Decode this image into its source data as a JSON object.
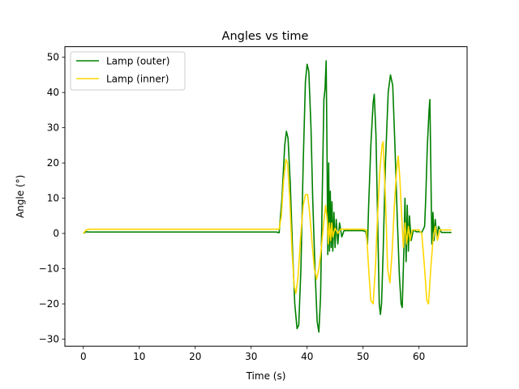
{
  "chart_data": {
    "type": "line",
    "title": "Angles vs time",
    "xlabel": "Time (s)",
    "ylabel": "Angle ($^\\circ$)",
    "ylabel_display": "Angle (°)",
    "xlim": [
      -3.3,
      68.6
    ],
    "ylim": [
      -32,
      53
    ],
    "xticks": [
      0,
      10,
      20,
      30,
      40,
      50,
      60
    ],
    "yticks": [
      -30,
      -20,
      -10,
      0,
      10,
      20,
      30,
      40,
      50
    ],
    "grid": false,
    "legend": "top-left",
    "series": [
      {
        "name": "Lamp (outer)",
        "color": "#008000",
        "points": [
          [
            0,
            0
          ],
          [
            0.5,
            0.5
          ],
          [
            1,
            0.4
          ],
          [
            5,
            0.4
          ],
          [
            10,
            0.4
          ],
          [
            15,
            0.4
          ],
          [
            20,
            0.4
          ],
          [
            25,
            0.4
          ],
          [
            30,
            0.4
          ],
          [
            34.5,
            0.4
          ],
          [
            35,
            0.2
          ],
          [
            35.5,
            10
          ],
          [
            36,
            25
          ],
          [
            36.3,
            29
          ],
          [
            36.6,
            27
          ],
          [
            37,
            14
          ],
          [
            37.4,
            -5
          ],
          [
            37.8,
            -20
          ],
          [
            38.2,
            -27
          ],
          [
            38.5,
            -26
          ],
          [
            38.9,
            -10
          ],
          [
            39.3,
            20
          ],
          [
            39.7,
            43
          ],
          [
            40,
            48
          ],
          [
            40.3,
            46
          ],
          [
            40.7,
            30
          ],
          [
            41,
            10
          ],
          [
            41.4,
            -10
          ],
          [
            41.8,
            -25
          ],
          [
            42.1,
            -28
          ],
          [
            42.4,
            -18
          ],
          [
            42.7,
            10
          ],
          [
            43,
            38
          ],
          [
            43.2,
            41
          ],
          [
            43.4,
            49
          ],
          [
            43.55,
            25
          ],
          [
            43.7,
            -6
          ],
          [
            43.85,
            20
          ],
          [
            44,
            -5
          ],
          [
            44.15,
            12
          ],
          [
            44.3,
            -4
          ],
          [
            44.45,
            9
          ],
          [
            44.6,
            -5
          ],
          [
            44.8,
            6
          ],
          [
            45,
            -4
          ],
          [
            45.2,
            4
          ],
          [
            45.5,
            -3
          ],
          [
            45.8,
            3
          ],
          [
            46.2,
            -1
          ],
          [
            46.6,
            0.8
          ],
          [
            47,
            0.8
          ],
          [
            48,
            0.8
          ],
          [
            49,
            0.8
          ],
          [
            50,
            0.8
          ],
          [
            50.5,
            0.5
          ],
          [
            50.8,
            -3
          ],
          [
            51,
            8
          ],
          [
            51.4,
            25
          ],
          [
            51.8,
            37
          ],
          [
            52,
            39.5
          ],
          [
            52.3,
            28
          ],
          [
            52.6,
            5
          ],
          [
            52.9,
            -20
          ],
          [
            53.1,
            -23
          ],
          [
            53.3,
            -20
          ],
          [
            53.6,
            -5
          ],
          [
            54,
            20
          ],
          [
            54.5,
            40
          ],
          [
            54.9,
            45
          ],
          [
            55.3,
            42
          ],
          [
            55.7,
            25
          ],
          [
            56.1,
            5
          ],
          [
            56.5,
            -12
          ],
          [
            56.8,
            -20
          ],
          [
            57,
            -21
          ],
          [
            57.3,
            -5
          ],
          [
            57.5,
            10
          ],
          [
            57.7,
            -8
          ],
          [
            57.9,
            8
          ],
          [
            58.1,
            -5
          ],
          [
            58.3,
            5
          ],
          [
            58.6,
            -2
          ],
          [
            59,
            1
          ],
          [
            59.5,
            0.5
          ],
          [
            60,
            0.5
          ],
          [
            60.5,
            0.3
          ],
          [
            61,
            2
          ],
          [
            61.2,
            10
          ],
          [
            61.5,
            25
          ],
          [
            61.8,
            35
          ],
          [
            61.95,
            38
          ],
          [
            62.1,
            20
          ],
          [
            62.3,
            -3
          ],
          [
            62.5,
            6
          ],
          [
            62.7,
            -2
          ],
          [
            62.9,
            4
          ],
          [
            63.2,
            -1
          ],
          [
            63.5,
            2
          ],
          [
            64,
            0.3
          ],
          [
            65,
            0.3
          ],
          [
            65.8,
            0.3
          ]
        ]
      },
      {
        "name": "Lamp (inner)",
        "color": "#FFD700",
        "points": [
          [
            0,
            0
          ],
          [
            0.5,
            1
          ],
          [
            1,
            1.2
          ],
          [
            5,
            1.2
          ],
          [
            10,
            1.2
          ],
          [
            15,
            1.2
          ],
          [
            20,
            1.2
          ],
          [
            25,
            1.2
          ],
          [
            30,
            1.2
          ],
          [
            34,
            1.2
          ],
          [
            35,
            1.2
          ],
          [
            35.4,
            5
          ],
          [
            35.8,
            15
          ],
          [
            36.2,
            21
          ],
          [
            36.5,
            20
          ],
          [
            36.9,
            10
          ],
          [
            37.3,
            -5
          ],
          [
            37.7,
            -15
          ],
          [
            38,
            -17
          ],
          [
            38.4,
            -12
          ],
          [
            38.8,
            -2
          ],
          [
            39.3,
            8
          ],
          [
            39.7,
            11
          ],
          [
            40.1,
            11
          ],
          [
            40.5,
            5
          ],
          [
            40.9,
            -3
          ],
          [
            41.3,
            -10
          ],
          [
            41.7,
            -13
          ],
          [
            42.1,
            -10
          ],
          [
            42.5,
            -5
          ],
          [
            42.9,
            2
          ],
          [
            43.3,
            8
          ],
          [
            43.6,
            4
          ],
          [
            43.8,
            -3
          ],
          [
            44,
            3
          ],
          [
            44.2,
            -2
          ],
          [
            44.4,
            3
          ],
          [
            44.6,
            -1
          ],
          [
            45,
            1.5
          ],
          [
            45.5,
            0
          ],
          [
            46,
            1.2
          ],
          [
            48,
            1.2
          ],
          [
            50,
            1.2
          ],
          [
            50.6,
            1
          ],
          [
            51,
            -10
          ],
          [
            51.4,
            -19
          ],
          [
            51.8,
            -20
          ],
          [
            52.2,
            -10
          ],
          [
            52.6,
            5
          ],
          [
            53,
            18
          ],
          [
            53.4,
            25
          ],
          [
            53.6,
            26
          ],
          [
            54,
            10
          ],
          [
            54.4,
            -10
          ],
          [
            54.8,
            -14
          ],
          [
            55.2,
            -5
          ],
          [
            55.6,
            8
          ],
          [
            56,
            18
          ],
          [
            56.3,
            22
          ],
          [
            56.6,
            15
          ],
          [
            56.9,
            5
          ],
          [
            57.2,
            -4
          ],
          [
            57.5,
            3
          ],
          [
            57.8,
            -3
          ],
          [
            58.1,
            2
          ],
          [
            58.4,
            -2
          ],
          [
            58.8,
            1
          ],
          [
            59.5,
            1
          ],
          [
            60,
            1
          ],
          [
            60.5,
            0
          ],
          [
            61,
            -10
          ],
          [
            61.4,
            -19
          ],
          [
            61.7,
            -20
          ],
          [
            62.1,
            -10
          ],
          [
            62.5,
            -2
          ],
          [
            62.9,
            2
          ],
          [
            63.3,
            -2
          ],
          [
            63.7,
            1
          ],
          [
            64,
            1
          ],
          [
            65,
            1
          ],
          [
            65.8,
            1
          ]
        ]
      }
    ]
  }
}
